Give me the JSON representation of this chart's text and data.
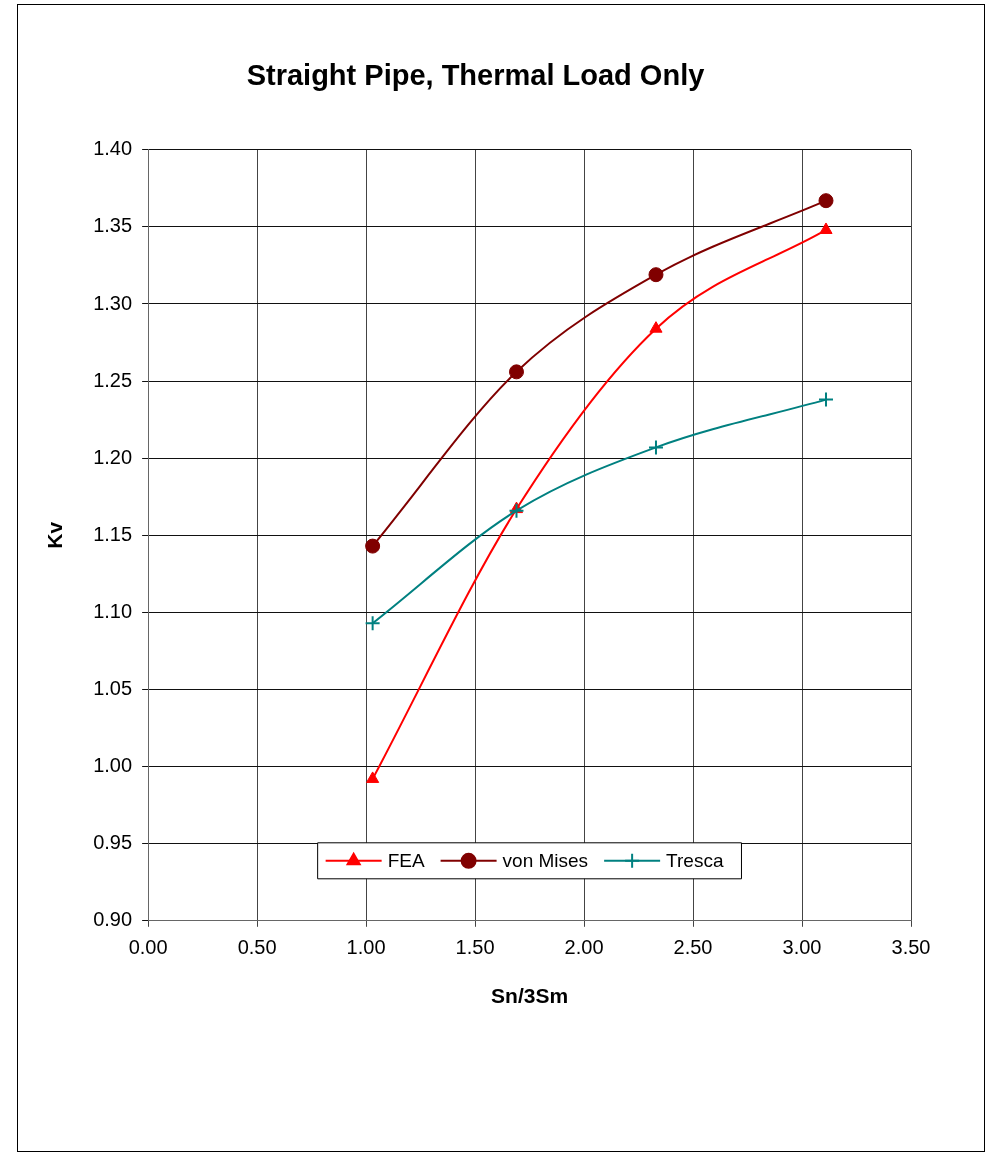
{
  "chart_data": {
    "type": "line",
    "title": "Straight Pipe, Thermal Load Only",
    "xlabel": "Sn/3Sm",
    "ylabel": "Kv",
    "x": [
      1.03,
      1.69,
      2.33,
      3.11
    ],
    "series": [
      {
        "name": "FEA",
        "color": "#ff0000",
        "marker": "triangle",
        "values": [
          0.992,
          1.167,
          1.284,
          1.348
        ]
      },
      {
        "name": "von Mises",
        "color": "#800000",
        "marker": "circle",
        "values": [
          1.143,
          1.256,
          1.319,
          1.367
        ]
      },
      {
        "name": "Tresca",
        "color": "#008080",
        "marker": "cross",
        "values": [
          1.093,
          1.166,
          1.207,
          1.238
        ]
      }
    ],
    "xlim": [
      0,
      3.5
    ],
    "xticks": [
      {
        "value": 0,
        "label": "0.00"
      },
      {
        "value": 0.5,
        "label": "0.50"
      },
      {
        "value": 1,
        "label": "1.00"
      },
      {
        "value": 1.5,
        "label": "1.50"
      },
      {
        "value": 2,
        "label": "2.00"
      },
      {
        "value": 2.5,
        "label": "2.50"
      },
      {
        "value": 3,
        "label": "3.00"
      },
      {
        "value": 3.5,
        "label": "3.50"
      }
    ],
    "ylim": [
      0.9,
      1.4
    ],
    "yticks": [
      {
        "value": 0.9,
        "label": "0.90"
      },
      {
        "value": 0.95,
        "label": "0.95"
      },
      {
        "value": 1,
        "label": "1.00"
      },
      {
        "value": 1.05,
        "label": "1.05"
      },
      {
        "value": 1.1,
        "label": "1.10"
      },
      {
        "value": 1.15,
        "label": "1.15"
      },
      {
        "value": 1.2,
        "label": "1.20"
      },
      {
        "value": 1.25,
        "label": "1.25"
      },
      {
        "value": 1.3,
        "label": "1.30"
      },
      {
        "value": 1.35,
        "label": "1.35"
      },
      {
        "value": 1.4,
        "label": "1.40"
      }
    ],
    "grid": true,
    "legend": "bottom"
  }
}
